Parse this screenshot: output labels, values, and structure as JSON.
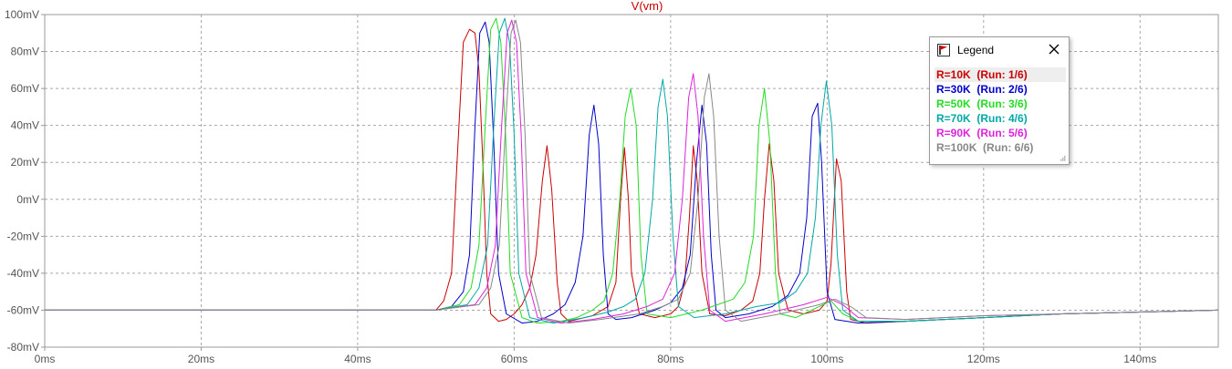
{
  "chart_data": {
    "type": "line",
    "title": "V(vm)",
    "xlabel": "",
    "ylabel": "",
    "xlim": [
      0,
      150
    ],
    "ylim": [
      -80,
      100
    ],
    "x_ticks": [
      0,
      20,
      40,
      60,
      80,
      100,
      120,
      140
    ],
    "x_tick_labels": [
      "0ms",
      "20ms",
      "40ms",
      "60ms",
      "80ms",
      "100ms",
      "120ms",
      "140ms"
    ],
    "y_ticks": [
      -80,
      -60,
      -40,
      -20,
      0,
      20,
      40,
      60,
      80,
      100
    ],
    "y_tick_labels": [
      "-80mV",
      "-60mV",
      "-40mV",
      "-20mV",
      "0mV",
      "20mV",
      "40mV",
      "60mV",
      "80mV",
      "100mV"
    ],
    "grid": true,
    "legend_position": "top-right",
    "rest_value": -60,
    "series": [
      {
        "name": "R=10K",
        "run": "(Run: 1/6)",
        "color": "#cc0000",
        "x": [
          0,
          50,
          51,
          52,
          52.7,
          53.5,
          54.3,
          55,
          55.5,
          56,
          56.5,
          57,
          58,
          59,
          60,
          61,
          62,
          62.8,
          63.6,
          64.2,
          64.8,
          65.5,
          66,
          67,
          68,
          70,
          72,
          73,
          73.6,
          74.1,
          74.6,
          75,
          76,
          78,
          80,
          81,
          81.8,
          82.4,
          82.9,
          83.4,
          84,
          85,
          87,
          89,
          90.5,
          91.4,
          92,
          92.6,
          93.2,
          93.8,
          95,
          97,
          99,
          100,
          100.5,
          101.2,
          101.8,
          102.5,
          103,
          105,
          110,
          120,
          130,
          140,
          150
        ],
        "y": [
          -60,
          -60,
          -55,
          -40,
          20,
          85,
          92,
          90,
          70,
          20,
          -40,
          -62,
          -66,
          -65,
          -62,
          -57,
          -48,
          -30,
          10,
          29,
          5,
          -45,
          -62,
          -66,
          -65,
          -63,
          -58,
          -45,
          0,
          28,
          0,
          -40,
          -62,
          -64,
          -62,
          -58,
          -45,
          -10,
          29,
          10,
          -40,
          -62,
          -63,
          -60,
          -55,
          -40,
          0,
          30,
          10,
          -40,
          -60,
          -62,
          -60,
          -55,
          -35,
          22,
          10,
          -50,
          -65,
          -67,
          -66,
          -64,
          -62,
          -61,
          -60
        ]
      },
      {
        "name": "R=30K",
        "run": "(Run: 2/6)",
        "color": "#0000cc",
        "x": [
          0,
          50,
          52,
          53.5,
          54.3,
          55,
          55.6,
          56.3,
          56.8,
          57.4,
          58,
          59,
          61,
          63,
          65,
          66.5,
          67.8,
          68.8,
          69.6,
          70.2,
          70.8,
          71.4,
          72,
          73,
          75,
          78,
          80,
          81.5,
          82.5,
          83.3,
          84,
          84.6,
          85.2,
          85.8,
          87,
          90,
          93,
          95,
          96.5,
          97.4,
          98.1,
          98.8,
          99.3,
          100,
          101,
          104,
          110,
          120,
          130,
          140,
          150
        ],
        "y": [
          -60,
          -60,
          -58,
          -50,
          -30,
          40,
          90,
          96,
          85,
          30,
          -40,
          -62,
          -67,
          -66,
          -62,
          -57,
          -45,
          -20,
          35,
          51,
          30,
          -30,
          -62,
          -65,
          -64,
          -60,
          -56,
          -48,
          -30,
          20,
          51,
          30,
          -30,
          -60,
          -64,
          -62,
          -58,
          -52,
          -40,
          -10,
          45,
          52,
          20,
          -50,
          -65,
          -67,
          -66,
          -64,
          -62,
          -61,
          -60
        ]
      },
      {
        "name": "R=50K",
        "run": "(Run: 3/6)",
        "color": "#22dd22",
        "x": [
          0,
          50,
          53,
          54.5,
          55.5,
          56.3,
          57,
          57.7,
          58.3,
          58.9,
          59.5,
          61,
          63,
          66,
          68,
          70,
          71.5,
          72.6,
          73.5,
          74.2,
          74.9,
          75.6,
          76.2,
          77,
          80,
          84,
          86,
          88,
          89.5,
          90.6,
          91.3,
          92,
          92.7,
          93.4,
          94,
          96,
          99,
          100.5,
          102,
          104,
          110,
          120,
          130,
          140,
          150
        ],
        "y": [
          -60,
          -60,
          -57,
          -48,
          -25,
          40,
          92,
          98,
          85,
          35,
          -40,
          -64,
          -67,
          -66,
          -64,
          -60,
          -55,
          -40,
          0,
          45,
          60,
          40,
          -30,
          -62,
          -64,
          -60,
          -57,
          -54,
          -45,
          -20,
          40,
          60,
          30,
          -40,
          -62,
          -64,
          -58,
          -55,
          -62,
          -66,
          -66,
          -64,
          -62,
          -61,
          -60
        ]
      },
      {
        "name": "R=70K",
        "run": "(Run: 4/6)",
        "color": "#00a8a8",
        "x": [
          0,
          50,
          54,
          55.5,
          56.6,
          57.4,
          58.1,
          58.8,
          59.4,
          60,
          60.6,
          62,
          65,
          69,
          72,
          74,
          75.5,
          76.7,
          77.7,
          78.4,
          79,
          79.6,
          80.3,
          81,
          83,
          87,
          91,
          94,
          96,
          97.5,
          98.5,
          99.2,
          99.9,
          100.6,
          101.3,
          102,
          104,
          110,
          120,
          130,
          140,
          150
        ],
        "y": [
          -60,
          -60,
          -57,
          -48,
          -25,
          40,
          90,
          98,
          85,
          35,
          -40,
          -64,
          -67,
          -64,
          -61,
          -58,
          -54,
          -40,
          0,
          50,
          65,
          45,
          -20,
          -58,
          -64,
          -62,
          -58,
          -56,
          -50,
          -40,
          -10,
          40,
          64,
          40,
          -30,
          -60,
          -66,
          -66,
          -64,
          -62,
          -61,
          -60
        ]
      },
      {
        "name": "R=90K",
        "run": "(Run: 5/6)",
        "color": "#dd22dd",
        "x": [
          0,
          50,
          55,
          56.5,
          57.6,
          58.4,
          59.1,
          59.7,
          60.3,
          60.9,
          61.5,
          63,
          66,
          70,
          74,
          77,
          79,
          80.5,
          81.5,
          82.3,
          82.9,
          83.5,
          84.2,
          85,
          87,
          92,
          97,
          100,
          102,
          104,
          110,
          120,
          130,
          140,
          150
        ],
        "y": [
          -60,
          -60,
          -57,
          -48,
          -25,
          40,
          90,
          97,
          85,
          35,
          -40,
          -64,
          -67,
          -65,
          -62,
          -58,
          -54,
          -40,
          0,
          55,
          68,
          45,
          -20,
          -60,
          -66,
          -62,
          -57,
          -53,
          -57,
          -64,
          -65,
          -63,
          -62,
          -61,
          -60
        ]
      },
      {
        "name": "R=100K",
        "run": "(Run: 6/6)",
        "color": "#888888",
        "x": [
          0,
          50,
          55.5,
          57,
          58.1,
          58.9,
          59.6,
          60.2,
          60.8,
          61.4,
          62,
          63.5,
          67,
          71,
          76,
          79,
          81,
          82.5,
          83.5,
          84.3,
          84.9,
          85.5,
          86.2,
          87,
          89,
          94,
          99,
          101,
          103,
          105,
          110,
          120,
          130,
          140,
          150
        ],
        "y": [
          -60,
          -60,
          -57,
          -48,
          -25,
          40,
          90,
          97,
          85,
          35,
          -40,
          -64,
          -67,
          -65,
          -62,
          -58,
          -54,
          -40,
          0,
          55,
          68,
          45,
          -20,
          -60,
          -66,
          -62,
          -57,
          -54,
          -58,
          -64,
          -65,
          -63,
          -62,
          -61,
          -60
        ]
      }
    ]
  },
  "legend": {
    "title": "Legend",
    "entries": [
      {
        "label": "R=10K  (Run: 1/6)",
        "color": "#cc0000"
      },
      {
        "label": "R=30K  (Run: 2/6)",
        "color": "#0000cc"
      },
      {
        "label": "R=50K  (Run: 3/6)",
        "color": "#22dd22"
      },
      {
        "label": "R=70K  (Run: 4/6)",
        "color": "#00a8a8"
      },
      {
        "label": "R=90K  (Run: 5/6)",
        "color": "#dd22dd"
      },
      {
        "label": "R=100K  (Run: 6/6)",
        "color": "#888888"
      }
    ]
  }
}
